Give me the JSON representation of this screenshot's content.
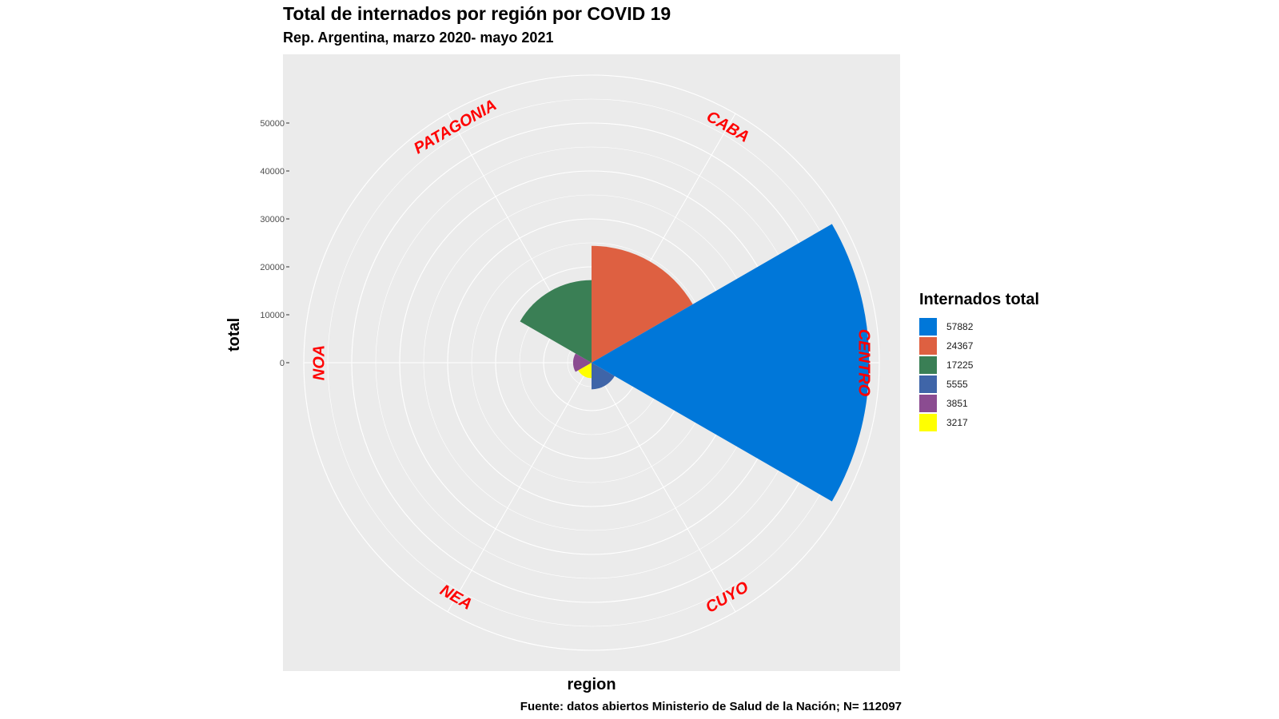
{
  "chart_data": {
    "type": "bar",
    "coord": "polar",
    "title": "Total de internados por región por COVID 19",
    "subtitle": "Rep. Argentina, marzo 2020- mayo 2021",
    "xlabel": "region",
    "ylabel": "total",
    "caption": "Fuente: datos abiertos Ministerio de Salud de la Nación; N= 112097",
    "categories": [
      "CABA",
      "CENTRO",
      "CUYO",
      "NEA",
      "NOA",
      "PATAGONIA"
    ],
    "values": [
      24367,
      57882,
      5555,
      3217,
      3851,
      17225
    ],
    "colors": [
      "#DE6041",
      "#0077D9",
      "#3F65A8",
      "#FFFF00",
      "#8B4C91",
      "#3A7F55"
    ],
    "yticks": [
      0,
      10000,
      20000,
      30000,
      40000,
      50000
    ],
    "ylim": [
      0,
      60000
    ],
    "grid": true,
    "legend": {
      "title": "Internados total",
      "position": "right",
      "entries": [
        {
          "label": "57882",
          "color": "#0077D9"
        },
        {
          "label": "24367",
          "color": "#DE6041"
        },
        {
          "label": "17225",
          "color": "#3A7F55"
        },
        {
          "label": "5555",
          "color": "#3F65A8"
        },
        {
          "label": "3851",
          "color": "#8B4C91"
        },
        {
          "label": "3217",
          "color": "#FFFF00"
        }
      ]
    },
    "category_label_color": "#FF0000",
    "panel_color": "#EBEBEB",
    "grid_color": "#FFFFFF"
  }
}
